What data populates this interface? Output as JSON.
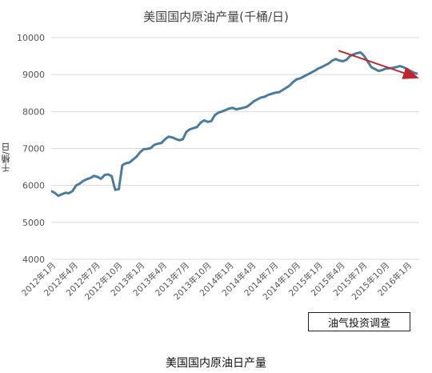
{
  "chart_data": {
    "type": "line",
    "title": "美国国内原油产量(千桶/日)",
    "ylabel": "千桶/日",
    "xlabel": "",
    "ylim": [
      4000,
      10000
    ],
    "yticks": [
      4000,
      5000,
      6000,
      7000,
      8000,
      9000,
      10000
    ],
    "grid": "horizontal",
    "line_color": "#4a7ba0",
    "trend_color": "#c0262d",
    "x_tick_labels": [
      "2012年1月",
      "2012年4月",
      "2012年7月",
      "2012年10月",
      "2013年1月",
      "2013年4月",
      "2013年7月",
      "2013年10月",
      "2014年1月",
      "2014年4月",
      "2014年7月",
      "2014年10月",
      "2015年1月",
      "2015年4月",
      "2015年7月",
      "2015年10月",
      "2016年1月"
    ],
    "series": [
      {
        "values": [
          5850,
          5800,
          5720,
          5760,
          5800,
          5790,
          5850,
          6000,
          6050,
          6120,
          6170,
          6200,
          6260,
          6230,
          6180,
          6280,
          6300,
          6250,
          5880,
          5900,
          6550,
          6600,
          6620,
          6700,
          6780,
          6900,
          6980,
          6990,
          7010,
          7100,
          7130,
          7150,
          7250,
          7320,
          7300,
          7260,
          7220,
          7250,
          7450,
          7520,
          7550,
          7580,
          7700,
          7760,
          7720,
          7740,
          7900,
          7970,
          8000,
          8040,
          8080,
          8100,
          8060,
          8080,
          8100,
          8130,
          8200,
          8280,
          8330,
          8380,
          8400,
          8450,
          8480,
          8510,
          8520,
          8580,
          8640,
          8700,
          8800,
          8870,
          8900,
          8950,
          9000,
          9050,
          9100,
          9160,
          9200,
          9250,
          9300,
          9380,
          9420,
          9380,
          9360,
          9400,
          9500,
          9550,
          9580,
          9600,
          9500,
          9350,
          9200,
          9150,
          9100,
          9120,
          9160,
          9170,
          9180,
          9200,
          9230,
          9200,
          9150,
          9100,
          9050,
          9020
        ],
        "x_start": "2012年1月",
        "x_end": "2016年4月"
      }
    ],
    "trend_arrow": {
      "from_value": 9650,
      "to_value": 8930
    }
  },
  "watermark": "油气投资调查",
  "caption": "美国国内原油日产量"
}
